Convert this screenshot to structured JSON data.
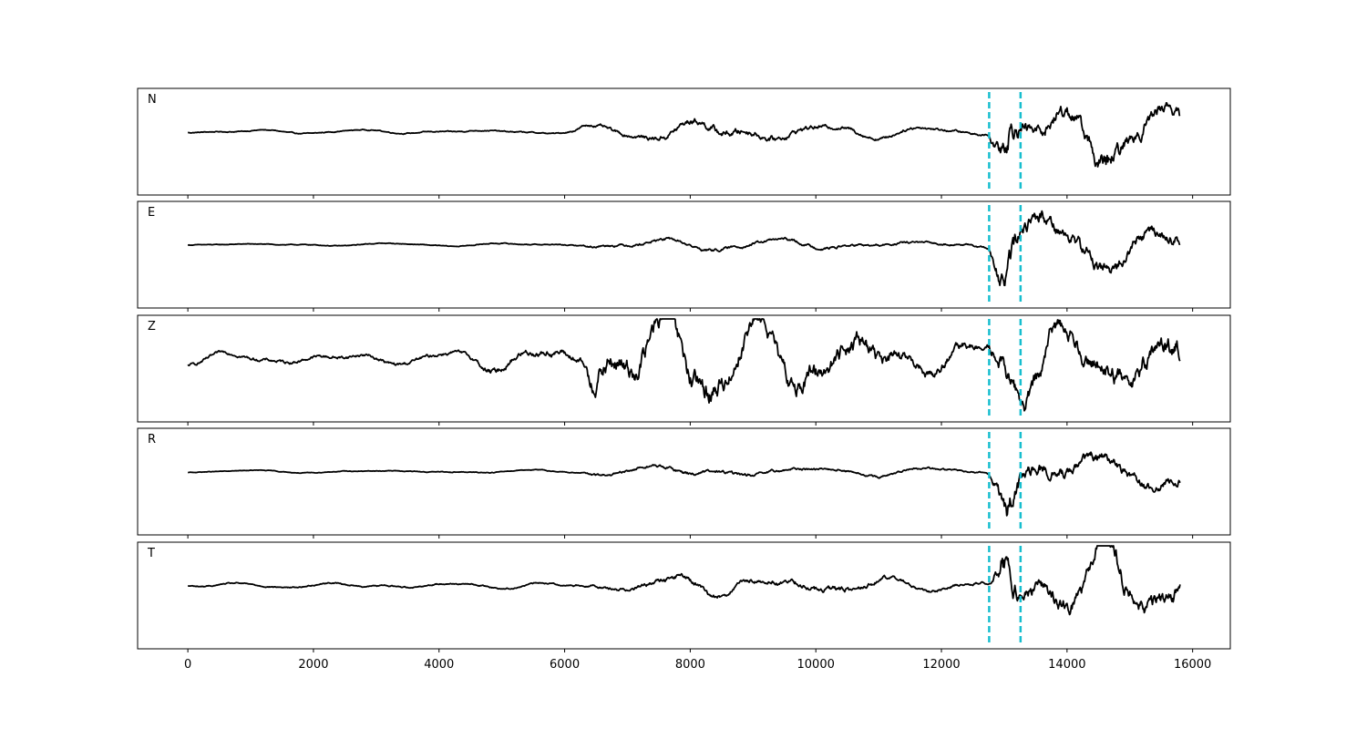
{
  "chart_data": {
    "type": "line",
    "title": "",
    "xlabel": "",
    "ylabel": "",
    "xlim": [
      -800,
      16600
    ],
    "xticks": [
      0,
      2000,
      4000,
      6000,
      8000,
      10000,
      12000,
      14000,
      16000
    ],
    "xtick_labels": [
      "0",
      "2000",
      "4000",
      "6000",
      "8000",
      "10000",
      "12000",
      "14000",
      "16000"
    ],
    "sample_range": [
      0,
      15800
    ],
    "markers": {
      "color": "#17becf",
      "style": "dashed",
      "x": [
        12760,
        13260
      ]
    },
    "line_color": "#000000",
    "grid": false,
    "panels": [
      {
        "label": "N",
        "envelope": [
          [
            0,
            0.03
          ],
          [
            6000,
            0.04
          ],
          [
            6300,
            0.09
          ],
          [
            7200,
            0.13
          ],
          [
            7600,
            0.2
          ],
          [
            8400,
            0.25
          ],
          [
            9200,
            0.2
          ],
          [
            10000,
            0.14
          ],
          [
            11000,
            0.1
          ],
          [
            12700,
            0.07
          ],
          [
            12760,
            0.12
          ],
          [
            12900,
            0.65
          ],
          [
            13050,
            1.0
          ],
          [
            13300,
            0.45
          ],
          [
            14400,
            0.55
          ],
          [
            14500,
            0.8
          ],
          [
            15000,
            0.5
          ],
          [
            15800,
            0.4
          ]
        ],
        "freq": [
          0.0022,
          0.0031,
          0.0047
        ]
      },
      {
        "label": "E",
        "envelope": [
          [
            0,
            0.02
          ],
          [
            6300,
            0.03
          ],
          [
            6400,
            0.08
          ],
          [
            8000,
            0.1
          ],
          [
            10000,
            0.09
          ],
          [
            12700,
            0.06
          ],
          [
            12760,
            0.08
          ],
          [
            12950,
            0.75
          ],
          [
            13100,
            0.9
          ],
          [
            13300,
            0.5
          ],
          [
            14400,
            0.5
          ],
          [
            15000,
            0.4
          ],
          [
            15800,
            0.35
          ]
        ],
        "freq": [
          0.0019,
          0.0027,
          0.0042
        ]
      },
      {
        "label": "Z",
        "envelope": [
          [
            0,
            0.1
          ],
          [
            4600,
            0.12
          ],
          [
            4700,
            0.2
          ],
          [
            6300,
            0.25
          ],
          [
            6400,
            0.8
          ],
          [
            7000,
            0.7
          ],
          [
            8000,
            0.85
          ],
          [
            9000,
            0.6
          ],
          [
            10500,
            0.65
          ],
          [
            11500,
            0.35
          ],
          [
            12700,
            0.25
          ],
          [
            12900,
            0.55
          ],
          [
            13200,
            0.7
          ],
          [
            14000,
            0.6
          ],
          [
            15600,
            0.7
          ],
          [
            15800,
            0.9
          ]
        ],
        "freq": [
          0.0024,
          0.0033,
          0.0051
        ]
      },
      {
        "label": "R",
        "envelope": [
          [
            0,
            0.02
          ],
          [
            6300,
            0.03
          ],
          [
            6400,
            0.08
          ],
          [
            8000,
            0.12
          ],
          [
            10000,
            0.08
          ],
          [
            12700,
            0.06
          ],
          [
            12760,
            0.08
          ],
          [
            12950,
            0.7
          ],
          [
            13050,
            1.0
          ],
          [
            13300,
            0.45
          ],
          [
            14500,
            0.35
          ],
          [
            15800,
            0.3
          ]
        ],
        "freq": [
          0.0018,
          0.0026,
          0.0039
        ]
      },
      {
        "label": "T",
        "envelope": [
          [
            0,
            0.04
          ],
          [
            6000,
            0.05
          ],
          [
            7000,
            0.12
          ],
          [
            7800,
            0.18
          ],
          [
            9000,
            0.15
          ],
          [
            10400,
            0.2
          ],
          [
            11500,
            0.1
          ],
          [
            12700,
            0.09
          ],
          [
            12800,
            0.12
          ],
          [
            12950,
            0.9
          ],
          [
            13000,
            1.0
          ],
          [
            13300,
            0.5
          ],
          [
            14400,
            0.5
          ],
          [
            14500,
            0.8
          ],
          [
            15000,
            0.55
          ],
          [
            15700,
            0.6
          ],
          [
            15800,
            0.5
          ]
        ],
        "freq": [
          0.0023,
          0.0035,
          0.0049
        ]
      }
    ]
  }
}
